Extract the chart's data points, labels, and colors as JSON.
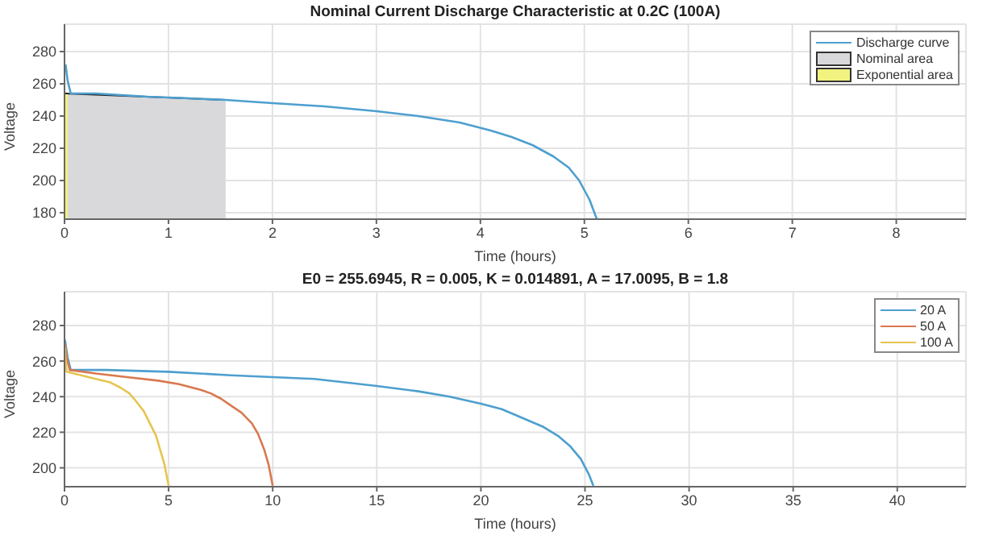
{
  "chart_data": [
    {
      "type": "line",
      "title": "Nominal Current Discharge Characteristic at 0.2C (100A)",
      "xlabel": "Time (hours)",
      "ylabel": "Voltage",
      "xlim": [
        0,
        8.67
      ],
      "xticks": [
        0,
        1,
        2,
        3,
        4,
        5,
        6,
        7,
        8
      ],
      "ylim": [
        176,
        297
      ],
      "yticks": [
        180,
        200,
        220,
        240,
        260,
        280
      ],
      "grid": true,
      "legend": "top right",
      "series": [
        {
          "name": "Discharge curve",
          "color": "#4d9fcf",
          "x": [
            0.01,
            0.03,
            0.06,
            0.3,
            0.8,
            1.2,
            1.55,
            2,
            2.5,
            3,
            3.4,
            3.8,
            4.1,
            4.3,
            4.5,
            4.7,
            4.85,
            4.95,
            5.05,
            5.12
          ],
          "values": [
            272,
            262,
            254,
            254,
            252,
            251,
            250,
            248,
            246,
            243,
            240,
            236,
            231,
            227,
            222,
            215,
            208,
            200,
            188,
            176
          ]
        },
        {
          "name": "Nominal area",
          "type": "area",
          "color": "#d9d9dc",
          "x": [
            0,
            1.55
          ],
          "values": [
            254,
            250
          ]
        },
        {
          "name": "Exponential area",
          "type": "area",
          "color": "#f2f280",
          "x": [
            0,
            0.03
          ],
          "values": [
            254,
            254
          ]
        }
      ]
    },
    {
      "type": "line",
      "title": "E0 = 255.6945, R = 0.005, K = 0.014891, A = 17.0095, B = 1.8",
      "xlabel": "Time (hours)",
      "ylabel": "Voltage",
      "xlim": [
        0,
        43.3
      ],
      "xticks": [
        0,
        5,
        10,
        15,
        20,
        25,
        30,
        35,
        40
      ],
      "ylim": [
        189.4,
        299
      ],
      "yticks": [
        200,
        220,
        240,
        260,
        280
      ],
      "grid": true,
      "legend": "top right",
      "series": [
        {
          "name": "20 A",
          "color": "#4d9fcf",
          "x": [
            0.02,
            0.15,
            0.3,
            2,
            5,
            8,
            10,
            12,
            15,
            17,
            18.5,
            20,
            21,
            22,
            23,
            23.7,
            24.3,
            24.8,
            25.2,
            25.4
          ],
          "values": [
            272,
            262,
            255,
            255,
            254,
            252,
            251,
            250,
            246,
            243,
            240,
            236,
            233,
            228,
            223,
            218,
            212,
            205,
            196,
            190
          ]
        },
        {
          "name": "50 A",
          "color": "#d9784f",
          "x": [
            0.02,
            0.1,
            0.25,
            1.5,
            3,
            4.5,
            5.5,
            6.5,
            7,
            7.5,
            8,
            8.5,
            9,
            9.3,
            9.6,
            9.8,
            10
          ],
          "values": [
            270,
            262,
            255,
            253,
            251,
            249,
            247,
            244,
            242,
            239,
            235,
            231,
            225,
            219,
            210,
            202,
            190
          ]
        },
        {
          "name": "100 A",
          "color": "#e6c550",
          "x": [
            0.02,
            0.05,
            0.1,
            0.8,
            1.5,
            2.2,
            2.7,
            3.1,
            3.4,
            3.8,
            4.1,
            4.4,
            4.6,
            4.8,
            5
          ],
          "values": [
            268,
            260,
            254,
            252,
            250,
            248,
            245,
            242,
            238,
            232,
            225,
            218,
            210,
            202,
            190
          ]
        }
      ]
    }
  ]
}
